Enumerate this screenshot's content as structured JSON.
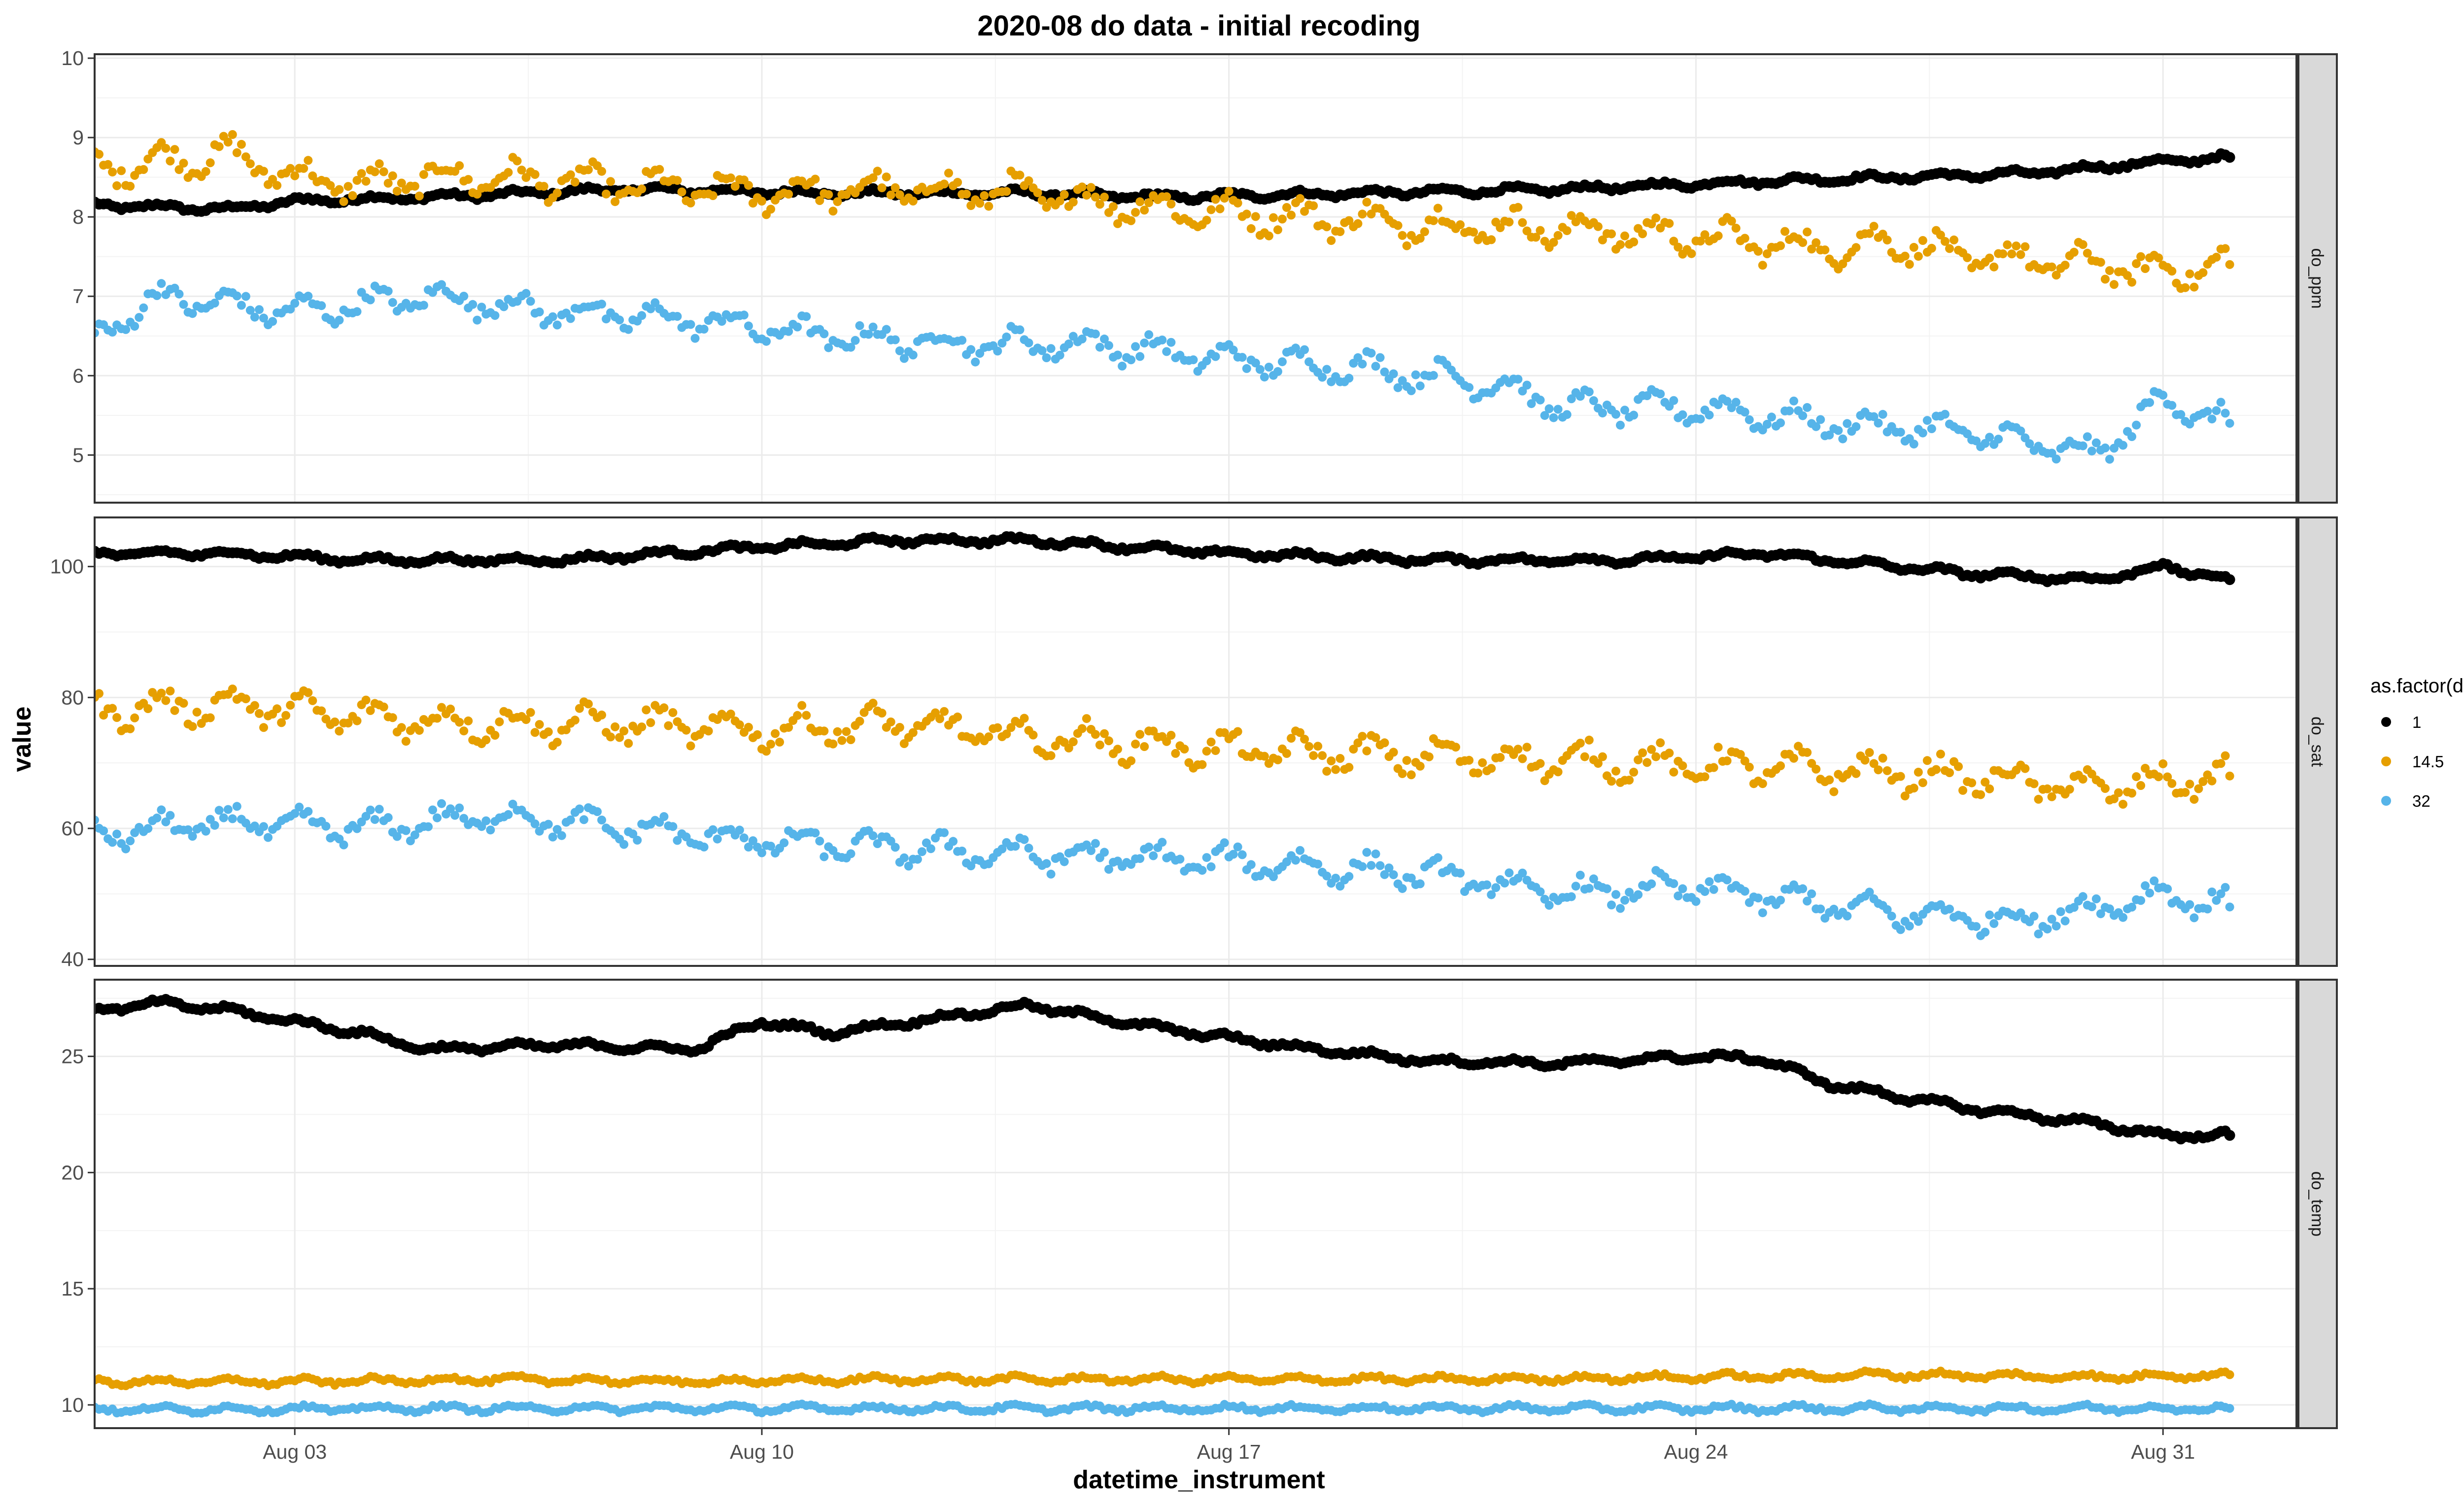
{
  "chart_data": {
    "type": "scatter",
    "title": "2020-08 do data - initial recoding",
    "xlabel": "datetime_instrument",
    "ylabel": "value",
    "x_ticks": [
      "Aug 03",
      "Aug 10",
      "Aug 17",
      "Aug 24",
      "Aug 31"
    ],
    "x_tick_dates": [
      "2020-08-03",
      "2020-08-10",
      "2020-08-17",
      "2020-08-24",
      "2020-08-31"
    ],
    "xlim": [
      "2020-07-31T00:00",
      "2020-09-02T00:00"
    ],
    "legend": {
      "title": "as.factor(depth)",
      "placement": "right",
      "entries": [
        "1",
        "14.5",
        "32"
      ]
    },
    "colors": {
      "1": "#000000",
      "14.5": "#E69F00",
      "32": "#56B4E9",
      "panel_border": "#333333",
      "grid": "#ebebeb",
      "strip_bg": "#d9d9d9"
    },
    "grid": true,
    "facets": [
      {
        "name": "do_ppm",
        "ylim": [
          4.4,
          10.05
        ],
        "y_ticks": [
          5,
          6,
          7,
          8,
          9,
          10
        ],
        "series": [
          {
            "name": "1",
            "x": [
              "2020-07-31",
              "2020-08-02",
              "2020-08-03",
              "2020-08-05",
              "2020-08-08",
              "2020-08-11",
              "2020-08-14",
              "2020-08-16",
              "2020-08-19",
              "2020-08-22",
              "2020-08-25",
              "2020-08-27",
              "2020-08-29",
              "2020-08-31",
              "2020-09-01"
            ],
            "y": [
              8.15,
              8.1,
              8.2,
              8.25,
              8.35,
              8.3,
              8.3,
              8.25,
              8.3,
              8.35,
              8.45,
              8.5,
              8.55,
              8.7,
              8.75
            ]
          },
          {
            "name": "14.5",
            "x": [
              "2020-07-31",
              "2020-08-01",
              "2020-08-02",
              "2020-08-03",
              "2020-08-04",
              "2020-08-05",
              "2020-08-06",
              "2020-08-08",
              "2020-08-10",
              "2020-08-12",
              "2020-08-14",
              "2020-08-16",
              "2020-08-18",
              "2020-08-20",
              "2020-08-22",
              "2020-08-24",
              "2020-08-26",
              "2020-08-27",
              "2020-08-28",
              "2020-08-30",
              "2020-08-31",
              "2020-09-01"
            ],
            "y": [
              8.6,
              8.7,
              8.8,
              8.5,
              8.4,
              8.5,
              8.5,
              8.4,
              8.3,
              8.35,
              8.3,
              8.1,
              8.0,
              7.9,
              7.85,
              7.75,
              7.6,
              7.7,
              7.5,
              7.4,
              7.3,
              7.4
            ]
          },
          {
            "name": "32",
            "x": [
              "2020-07-31",
              "2020-08-01",
              "2020-08-03",
              "2020-08-05",
              "2020-08-07",
              "2020-08-09",
              "2020-08-11",
              "2020-08-13",
              "2020-08-15",
              "2020-08-17",
              "2020-08-19",
              "2020-08-21",
              "2020-08-22",
              "2020-08-24",
              "2020-08-26",
              "2020-08-28",
              "2020-08-30",
              "2020-08-31",
              "2020-09-01"
            ],
            "y": [
              6.5,
              7.0,
              6.8,
              7.0,
              6.8,
              6.7,
              6.5,
              6.4,
              6.4,
              6.2,
              6.1,
              5.9,
              5.6,
              5.6,
              5.4,
              5.3,
              5.0,
              5.7,
              5.4
            ]
          }
        ]
      },
      {
        "name": "do_sat",
        "ylim": [
          39.0,
          107.5
        ],
        "y_ticks": [
          40,
          60,
          80,
          100
        ],
        "series": [
          {
            "name": "1",
            "x": [
              "2020-07-31",
              "2020-08-02",
              "2020-08-04",
              "2020-08-07",
              "2020-08-10",
              "2020-08-12",
              "2020-08-14",
              "2020-08-17",
              "2020-08-20",
              "2020-08-23",
              "2020-08-25",
              "2020-08-28",
              "2020-08-30",
              "2020-08-31",
              "2020-09-01"
            ],
            "y": [
              102,
              102,
              101,
              101,
              103,
              104,
              104,
              102,
              101,
              101,
              102,
              99,
              98,
              100,
              98
            ]
          },
          {
            "name": "14.5",
            "x": [
              "2020-07-31",
              "2020-08-02",
              "2020-08-04",
              "2020-08-06",
              "2020-08-08",
              "2020-08-10",
              "2020-08-12",
              "2020-08-14",
              "2020-08-17",
              "2020-08-20",
              "2020-08-23",
              "2020-08-26",
              "2020-08-28",
              "2020-08-30",
              "2020-09-01"
            ],
            "y": [
              78,
              79,
              77,
              76,
              76,
              75,
              76,
              74,
              72,
              71,
              70,
              69,
              68,
              66,
              68
            ]
          },
          {
            "name": "32",
            "x": [
              "2020-07-31",
              "2020-08-02",
              "2020-08-04",
              "2020-08-06",
              "2020-08-08",
              "2020-08-10",
              "2020-08-12",
              "2020-08-14",
              "2020-08-17",
              "2020-08-20",
              "2020-08-22",
              "2020-08-24",
              "2020-08-27",
              "2020-08-29",
              "2020-08-31",
              "2020-09-01"
            ],
            "y": [
              59,
              61,
              60,
              62,
              60,
              58,
              57,
              56,
              55,
              53,
              50,
              51,
              47,
              46,
              50,
              48
            ]
          }
        ]
      },
      {
        "name": "do_temp",
        "ylim": [
          9.0,
          28.3
        ],
        "y_ticks": [
          10,
          15,
          20,
          25
        ],
        "series": [
          {
            "name": "1",
            "x": [
              "2020-07-31",
              "2020-08-01",
              "2020-08-02",
              "2020-08-03",
              "2020-08-04",
              "2020-08-05",
              "2020-08-07",
              "2020-08-09",
              "2020-08-10",
              "2020-08-11",
              "2020-08-13",
              "2020-08-14",
              "2020-08-16",
              "2020-08-18",
              "2020-08-20",
              "2020-08-22",
              "2020-08-24",
              "2020-08-25",
              "2020-08-26",
              "2020-08-28",
              "2020-08-30",
              "2020-08-31",
              "2020-09-01"
            ],
            "y": [
              27.0,
              27.3,
              27.0,
              26.5,
              26.0,
              25.3,
              25.5,
              25.3,
              26.5,
              26.0,
              26.8,
              27.2,
              26.2,
              25.4,
              24.8,
              24.7,
              25.0,
              24.9,
              23.8,
              22.8,
              22.1,
              21.6,
              21.6
            ]
          },
          {
            "name": "14.5",
            "x": [
              "2020-07-31",
              "2020-08-03",
              "2020-08-06",
              "2020-08-09",
              "2020-08-12",
              "2020-08-15",
              "2020-08-18",
              "2020-08-21",
              "2020-08-24",
              "2020-08-27",
              "2020-08-30",
              "2020-09-01"
            ],
            "y": [
              11.0,
              11.0,
              11.1,
              11.0,
              11.1,
              11.1,
              11.1,
              11.1,
              11.2,
              11.3,
              11.2,
              11.3
            ]
          },
          {
            "name": "32",
            "x": [
              "2020-07-31",
              "2020-08-05",
              "2020-08-10",
              "2020-08-15",
              "2020-08-20",
              "2020-08-25",
              "2020-08-30",
              "2020-09-01"
            ],
            "y": [
              9.8,
              9.85,
              9.85,
              9.85,
              9.85,
              9.85,
              9.85,
              9.85
            ]
          }
        ]
      }
    ]
  }
}
